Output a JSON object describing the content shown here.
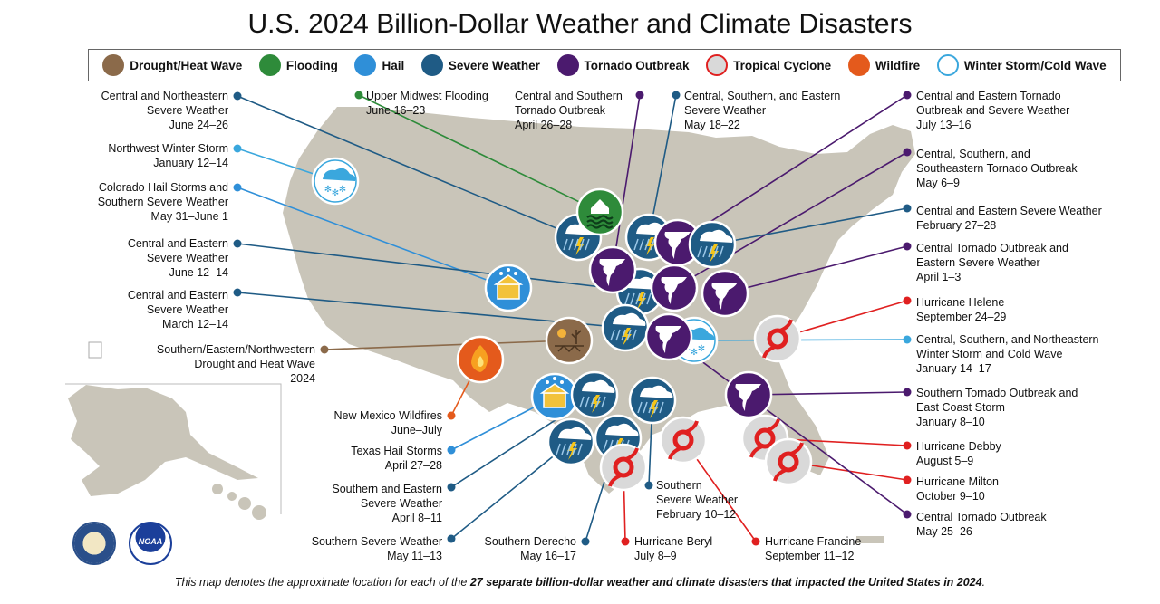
{
  "title": "U.S. 2024 Billion-Dollar Weather and Climate Disasters",
  "legend": [
    {
      "type": "drought",
      "label": "Drought/Heat Wave",
      "color": "#8b6a4a",
      "icon": "drought-icon"
    },
    {
      "type": "flood",
      "label": "Flooding",
      "color": "#2e8b3a",
      "icon": "flood-icon"
    },
    {
      "type": "hail",
      "label": "Hail",
      "color": "#2f8fd8",
      "icon": "hail-icon"
    },
    {
      "type": "severe",
      "label": "Severe Weather",
      "color": "#1f5b85",
      "icon": "severe-weather-icon"
    },
    {
      "type": "tornado",
      "label": "Tornado Outbreak",
      "color": "#4b1a6e",
      "icon": "tornado-icon"
    },
    {
      "type": "cyclone",
      "label": "Tropical Cyclone",
      "color": "#e02020",
      "icon": "cyclone-icon"
    },
    {
      "type": "wildfire",
      "label": "Wildfire",
      "color": "#e45a1c",
      "icon": "wildfire-icon"
    },
    {
      "type": "winter",
      "label": "Winter Storm/Cold Wave",
      "color": "#3aa7dd",
      "icon": "winter-storm-icon"
    }
  ],
  "events": [
    {
      "type": "severe",
      "lines": [
        "Central and Northeastern",
        "Severe Weather",
        "June 24–26"
      ]
    },
    {
      "type": "winter",
      "lines": [
        "Northwest Winter Storm",
        "January 12–14"
      ]
    },
    {
      "type": "hail",
      "lines": [
        "Colorado Hail Storms and",
        "Southern Severe Weather",
        "May 31–June 1"
      ]
    },
    {
      "type": "severe",
      "lines": [
        "Central and Eastern",
        "Severe Weather",
        "June 12–14"
      ]
    },
    {
      "type": "severe",
      "lines": [
        "Central and Eastern",
        "Severe Weather",
        "March 12–14"
      ]
    },
    {
      "type": "drought",
      "lines": [
        "Southern/Eastern/Northwestern",
        "Drought and Heat Wave",
        "2024"
      ]
    },
    {
      "type": "wildfire",
      "lines": [
        "New Mexico Wildfires",
        "June–July"
      ]
    },
    {
      "type": "hail",
      "lines": [
        "Texas Hail Storms",
        "April 27–28"
      ]
    },
    {
      "type": "severe",
      "lines": [
        "Southern and Eastern",
        "Severe Weather",
        "April 8–11"
      ]
    },
    {
      "type": "severe",
      "lines": [
        "Southern Severe Weather",
        "May 11–13"
      ]
    },
    {
      "type": "severe",
      "lines": [
        "Southern Derecho",
        "May 16–17"
      ]
    },
    {
      "type": "cyclone",
      "lines": [
        "Hurricane Beryl",
        "July 8–9"
      ]
    },
    {
      "type": "severe",
      "lines": [
        "Southern",
        "Severe Weather",
        "February 10–12"
      ]
    },
    {
      "type": "cyclone",
      "lines": [
        "Hurricane Francine",
        "September 11–12"
      ]
    },
    {
      "type": "flood",
      "lines": [
        "Upper Midwest Flooding",
        "June 16–23"
      ]
    },
    {
      "type": "tornado",
      "lines": [
        "Central and Southern",
        "Tornado Outbreak",
        "April 26–28"
      ]
    },
    {
      "type": "severe",
      "lines": [
        "Central, Southern, and Eastern",
        "Severe Weather",
        "May 18–22"
      ]
    },
    {
      "type": "tornado",
      "lines": [
        "Central and Eastern Tornado",
        "Outbreak and Severe Weather",
        "July 13–16"
      ]
    },
    {
      "type": "tornado",
      "lines": [
        "Central, Southern, and",
        "Southeastern Tornado Outbreak",
        "May 6–9"
      ]
    },
    {
      "type": "severe",
      "lines": [
        "Central and Eastern Severe Weather",
        "February 27–28"
      ]
    },
    {
      "type": "tornado",
      "lines": [
        "Central Tornado Outbreak and",
        "Eastern Severe Weather",
        "April 1–3"
      ]
    },
    {
      "type": "cyclone",
      "lines": [
        "Hurricane Helene",
        "September 24–29"
      ]
    },
    {
      "type": "winter",
      "lines": [
        "Central, Southern, and Northeastern",
        "Winter Storm and Cold Wave",
        "January 14–17"
      ]
    },
    {
      "type": "tornado",
      "lines": [
        "Southern Tornado Outbreak and",
        "East Coast Storm",
        "January 8–10"
      ]
    },
    {
      "type": "cyclone",
      "lines": [
        "Hurricane Debby",
        "August 5–9"
      ]
    },
    {
      "type": "cyclone",
      "lines": [
        "Hurricane Milton",
        "October 9–10"
      ]
    },
    {
      "type": "tornado",
      "lines": [
        "Central Tornado Outbreak",
        "May 25–26"
      ]
    }
  ],
  "footer": {
    "prefix": "This map denotes the approximate location for each of the ",
    "bold": "27 separate billion-dollar weather and climate disasters that impacted the United States in 2024",
    "suffix": "."
  },
  "logos": {
    "doc": "doc-seal-icon",
    "noaa": "noaa-logo-icon",
    "noaa_text": "NOAA"
  }
}
